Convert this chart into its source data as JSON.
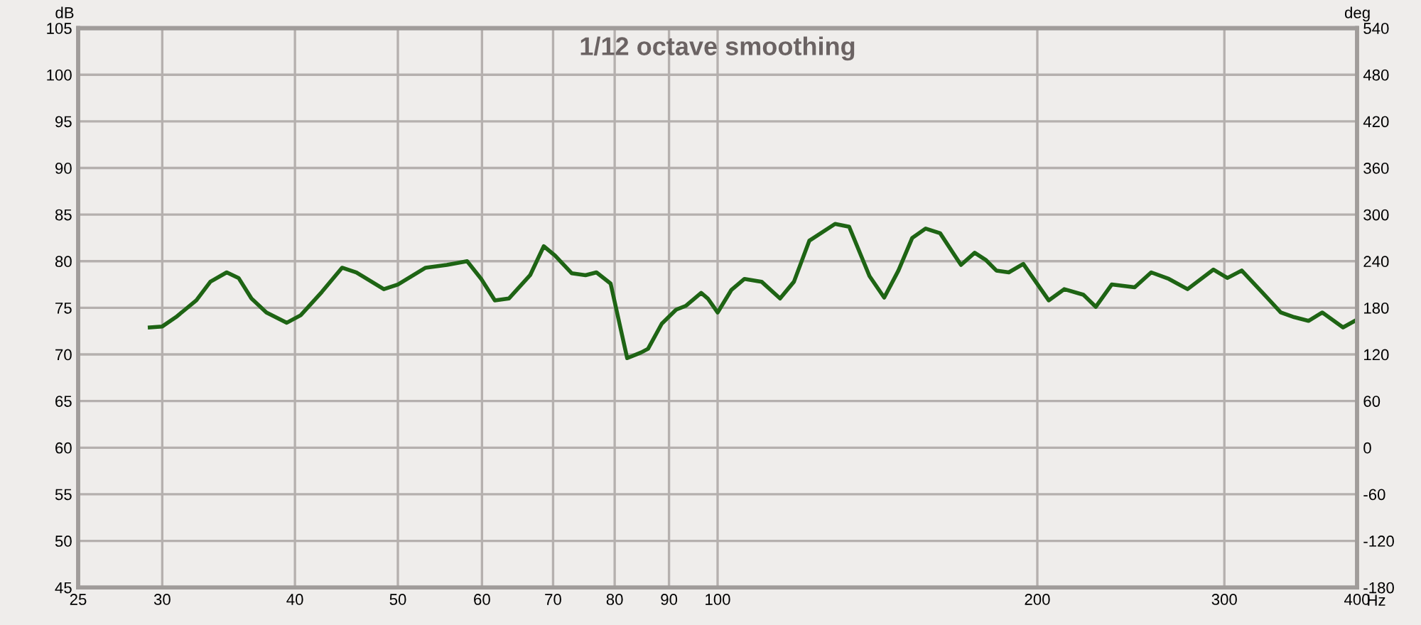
{
  "chart_data": {
    "type": "line",
    "title": "1/12 octave smoothing",
    "xlabel": "Hz",
    "ylabel": "dB",
    "y2label": "deg",
    "log": "x",
    "grid": true,
    "legend": false,
    "marker": "none",
    "line_style": "solid",
    "xlim": [
      25,
      400
    ],
    "xticks": [
      25,
      30,
      40,
      50,
      60,
      70,
      80,
      90,
      100,
      200,
      300,
      400
    ],
    "ylim": [
      45,
      105
    ],
    "yticks": [
      45,
      50,
      55,
      60,
      65,
      70,
      75,
      80,
      85,
      90,
      95,
      100,
      105
    ],
    "y2lim": [
      -180,
      540
    ],
    "y2ticks": [
      -180,
      -120,
      -60,
      0,
      60,
      120,
      180,
      240,
      300,
      360,
      420,
      480,
      540
    ],
    "series": [
      {
        "color": "#1e6414",
        "x": [
          29.2,
          30.0,
          30.9,
          32.3,
          33.3,
          34.5,
          35.4,
          36.4,
          37.6,
          39.3,
          40.5,
          42.4,
          44.3,
          45.7,
          48.5,
          50.0,
          53.1,
          55.6,
          58.1,
          59.9,
          61.7,
          63.6,
          66.6,
          68.6,
          70.3,
          72.9,
          75.1,
          76.9,
          79.3,
          82.2,
          84.7,
          86.0,
          88.6,
          91.4,
          93.3,
          96.5,
          97.9,
          100,
          103,
          106,
          110,
          114.5,
          118,
          122,
          129,
          133,
          139,
          143.5,
          148,
          152.5,
          157,
          162,
          167,
          169.5,
          174.6,
          179,
          183,
          188,
          194,
          205,
          212,
          221,
          227,
          235,
          247,
          256,
          266,
          277,
          293,
          302,
          311.5,
          326,
          339,
          349,
          360,
          371,
          388,
          398
        ],
        "values": [
          72.9,
          73.0,
          74.0,
          75.8,
          77.8,
          78.8,
          78.2,
          76.0,
          74.5,
          73.4,
          74.2,
          76.7,
          79.3,
          78.8,
          77.0,
          77.5,
          79.3,
          79.6,
          80.0,
          78.1,
          75.8,
          76.0,
          78.5,
          81.6,
          80.6,
          78.7,
          78.5,
          78.8,
          77.6,
          69.6,
          70.2,
          70.6,
          73.3,
          74.8,
          75.2,
          76.6,
          76.0,
          74.5,
          76.9,
          78.1,
          77.8,
          76.0,
          77.8,
          82.2,
          84.0,
          83.7,
          78.4,
          76.1,
          79.0,
          82.5,
          83.5,
          83.0,
          80.7,
          79.6,
          80.9,
          80.1,
          79.0,
          78.8,
          79.7,
          75.8,
          77.0,
          76.4,
          75.1,
          77.5,
          77.2,
          78.8,
          78.1,
          77.0,
          79.1,
          78.2,
          79.0,
          76.6,
          74.5,
          74.0,
          73.6,
          74.5,
          72.9,
          73.6
        ]
      }
    ]
  }
}
